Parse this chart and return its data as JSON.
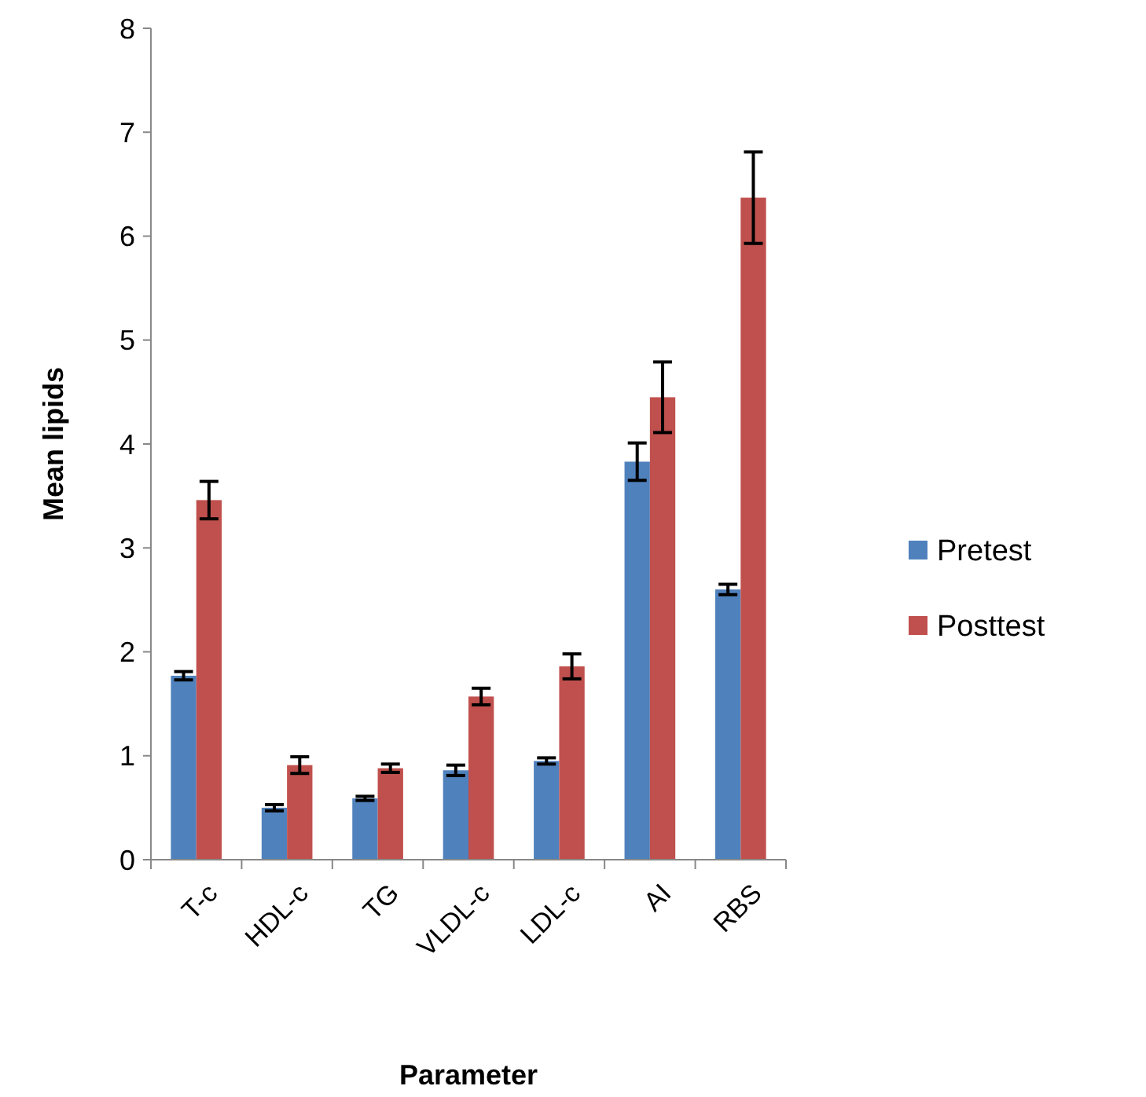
{
  "chart_data": {
    "type": "bar",
    "xlabel": "Parameter",
    "ylabel": "Mean lipids",
    "categories": [
      "T-c",
      "HDL-c",
      "TG",
      "VLDL-c",
      "LDL-c",
      "AI",
      "RBS"
    ],
    "series": [
      {
        "name": "Pretest",
        "color": "#4f81bd",
        "values": [
          1.77,
          0.5,
          0.59,
          0.86,
          0.95,
          3.83,
          2.6
        ],
        "errors": [
          0.04,
          0.03,
          0.02,
          0.05,
          0.03,
          0.18,
          0.05
        ]
      },
      {
        "name": "Posttest",
        "color": "#c0504d",
        "values": [
          3.46,
          0.91,
          0.88,
          1.57,
          1.86,
          4.45,
          6.37
        ],
        "errors": [
          0.18,
          0.08,
          0.04,
          0.08,
          0.12,
          0.34,
          0.44
        ]
      }
    ],
    "ylim": [
      0,
      8
    ],
    "yticks": [
      0,
      1,
      2,
      3,
      4,
      5,
      6,
      7,
      8
    ],
    "grid": false,
    "legend": "right"
  }
}
